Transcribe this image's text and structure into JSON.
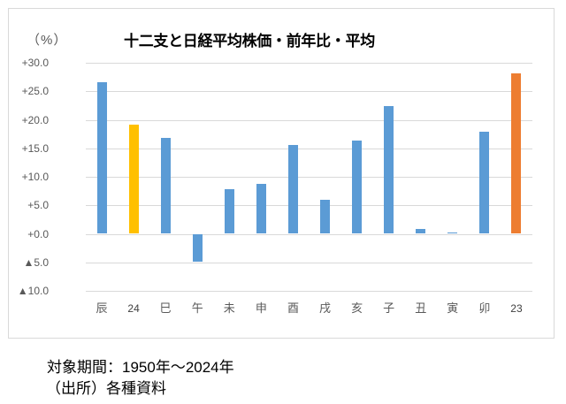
{
  "chart_data": {
    "type": "bar",
    "title": "十二支と日経平均株価・前年比・平均",
    "xlabel": "",
    "ylabel": "（%）",
    "categories": [
      "辰",
      "24",
      "巳",
      "午",
      "未",
      "申",
      "酉",
      "戌",
      "亥",
      "子",
      "丑",
      "寅",
      "卯",
      "23"
    ],
    "values": [
      26.6,
      19.2,
      16.8,
      -4.9,
      7.8,
      8.7,
      15.6,
      6.0,
      16.3,
      22.4,
      0.8,
      0.2,
      17.9,
      28.2
    ],
    "bar_colors": [
      "#5B9BD5",
      "#FFC000",
      "#5B9BD5",
      "#5B9BD5",
      "#5B9BD5",
      "#5B9BD5",
      "#5B9BD5",
      "#5B9BD5",
      "#5B9BD5",
      "#5B9BD5",
      "#5B9BD5",
      "#5B9BD5",
      "#5B9BD5",
      "#ED7D31"
    ],
    "ylim": [
      -10,
      30
    ],
    "yticks": [
      30,
      25,
      20,
      15,
      10,
      5,
      0,
      -5,
      -10
    ],
    "ytick_labels": [
      "+30.0",
      "+25.0",
      "+20.0",
      "+15.0",
      "+10.0",
      "+5.0",
      "+0.0",
      "▲5.0",
      "▲10.0"
    ],
    "grid": true,
    "legend": null,
    "gridline_color": "#D9D9D9"
  },
  "footer": {
    "period": "対象期間：1950年～2024年",
    "source": "（出所）各種資料"
  }
}
